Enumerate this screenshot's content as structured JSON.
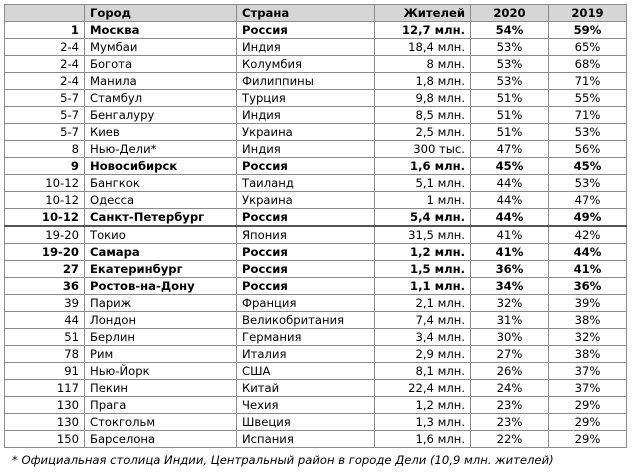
{
  "headers": [
    "",
    "Город",
    "Страна",
    "Жителей",
    "2020",
    "2019"
  ],
  "rows": [
    {
      "rank": "1",
      "city": "Москва",
      "country": "Россия",
      "pop": "12,7 млн.",
      "y2020": "54%",
      "y2019": "59%",
      "bold": true
    },
    {
      "rank": "2-4",
      "city": "Мумбаи",
      "country": "Индия",
      "pop": "18,4 млн.",
      "y2020": "53%",
      "y2019": "65%"
    },
    {
      "rank": "2-4",
      "city": "Богота",
      "country": "Колумбия",
      "pop": "8 млн.",
      "y2020": "53%",
      "y2019": "68%"
    },
    {
      "rank": "2-4",
      "city": "Манила",
      "country": "Филиппины",
      "pop": "1,8 млн.",
      "y2020": "53%",
      "y2019": "71%"
    },
    {
      "rank": "5-7",
      "city": "Стамбул",
      "country": "Турция",
      "pop": "9,8 млн.",
      "y2020": "51%",
      "y2019": "55%"
    },
    {
      "rank": "5-7",
      "city": "Бенгалуру",
      "country": "Индия",
      "pop": "8,5 млн.",
      "y2020": "51%",
      "y2019": "71%"
    },
    {
      "rank": "5-7",
      "city": "Киев",
      "country": "Украина",
      "pop": "2,5 млн.",
      "y2020": "51%",
      "y2019": "53%"
    },
    {
      "rank": "8",
      "city": "Нью-Дели*",
      "country": "Индия",
      "pop": "300 тыс.",
      "y2020": "47%",
      "y2019": "56%"
    },
    {
      "rank": "9",
      "city": "Новосибирск",
      "country": "Россия",
      "pop": "1,6 млн.",
      "y2020": "45%",
      "y2019": "45%",
      "bold": true
    },
    {
      "rank": "10-12",
      "city": "Бангкок",
      "country": "Таиланд",
      "pop": "5,1 млн.",
      "y2020": "44%",
      "y2019": "53%"
    },
    {
      "rank": "10-12",
      "city": "Одесса",
      "country": "Украина",
      "pop": "1 млн.",
      "y2020": "44%",
      "y2019": "47%"
    },
    {
      "rank": "10-12",
      "city": "Санкт-Петербург",
      "country": "Россия",
      "pop": "5,4 млн.",
      "y2020": "44%",
      "y2019": "49%",
      "bold": true
    },
    {
      "rank": "19-20",
      "city": "Токио",
      "country": "Япония",
      "pop": "31,5 млн.",
      "y2020": "41%",
      "y2019": "42%",
      "sep": true
    },
    {
      "rank": "19-20",
      "city": "Самара",
      "country": "Россия",
      "pop": "1,2 млн.",
      "y2020": "41%",
      "y2019": "44%",
      "bold": true
    },
    {
      "rank": "27",
      "city": "Екатеринбург",
      "country": "Россия",
      "pop": "1,5 млн.",
      "y2020": "36%",
      "y2019": "41%",
      "bold": true
    },
    {
      "rank": "36",
      "city": "Ростов-на-Дону",
      "country": "Россия",
      "pop": "1,1 млн.",
      "y2020": "34%",
      "y2019": "36%",
      "bold": true
    },
    {
      "rank": "39",
      "city": "Париж",
      "country": "Франция",
      "pop": "2,1 млн.",
      "y2020": "32%",
      "y2019": "39%"
    },
    {
      "rank": "44",
      "city": "Лондон",
      "country": "Великобритания",
      "pop": "7,4 млн.",
      "y2020": "31%",
      "y2019": "38%"
    },
    {
      "rank": "51",
      "city": "Берлин",
      "country": "Германия",
      "pop": "3,4 млн.",
      "y2020": "30%",
      "y2019": "32%"
    },
    {
      "rank": "78",
      "city": "Рим",
      "country": "Италия",
      "pop": "2,9 млн.",
      "y2020": "27%",
      "y2019": "38%"
    },
    {
      "rank": "91",
      "city": "Нью-Йорк",
      "country": "США",
      "pop": "8,1 млн.",
      "y2020": "26%",
      "y2019": "37%"
    },
    {
      "rank": "117",
      "city": "Пекин",
      "country": "Китай",
      "pop": "22,4 млн.",
      "y2020": "24%",
      "y2019": "37%"
    },
    {
      "rank": "130",
      "city": "Прага",
      "country": "Чехия",
      "pop": "1,2 млн.",
      "y2020": "23%",
      "y2019": "29%"
    },
    {
      "rank": "130",
      "city": "Стокгольм",
      "country": "Швеция",
      "pop": "1,3 млн.",
      "y2020": "23%",
      "y2019": "29%"
    },
    {
      "rank": "150",
      "city": "Барселона",
      "country": "Испания",
      "pop": "1,6 млн.",
      "y2020": "22%",
      "y2019": "29%"
    }
  ],
  "footnote": "* Официальная столица Индии, Центральный район в городе Дели (10,9 млн. жителей)"
}
